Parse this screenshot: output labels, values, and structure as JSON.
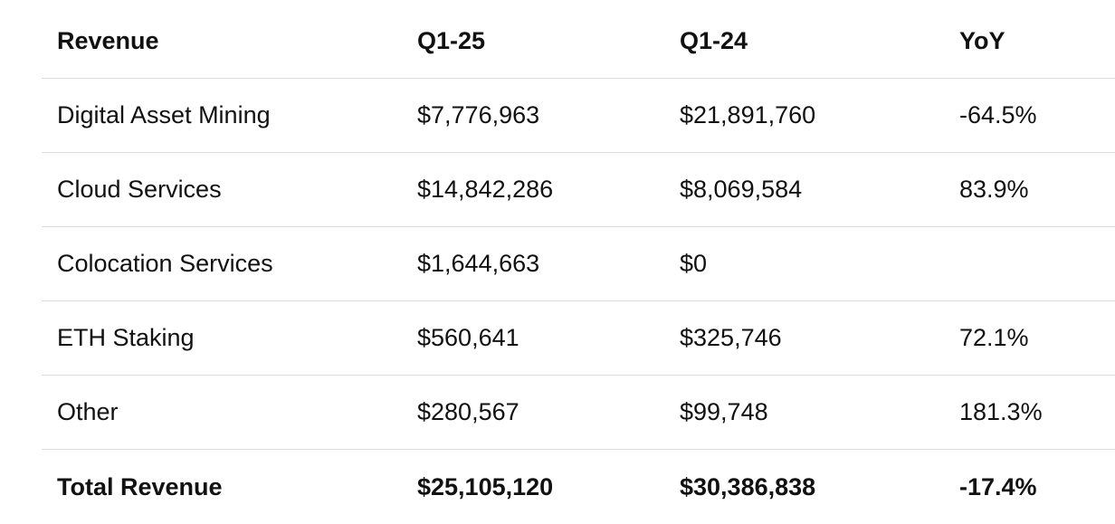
{
  "table": {
    "headers": [
      "Revenue",
      "Q1-25",
      "Q1-24",
      "YoY"
    ],
    "rows": [
      [
        "Digital Asset Mining",
        "$7,776,963",
        "$21,891,760",
        "-64.5%"
      ],
      [
        "Cloud Services",
        "$14,842,286",
        "$8,069,584",
        "83.9%"
      ],
      [
        "Colocation Services",
        "$1,644,663",
        "$0",
        ""
      ],
      [
        "ETH Staking",
        "$560,641",
        "$325,746",
        "72.1%"
      ],
      [
        "Other",
        "$280,567",
        "$99,748",
        "181.3%"
      ]
    ],
    "total": [
      "Total Revenue",
      "$25,105,120",
      "$30,386,838",
      "-17.4%"
    ]
  }
}
